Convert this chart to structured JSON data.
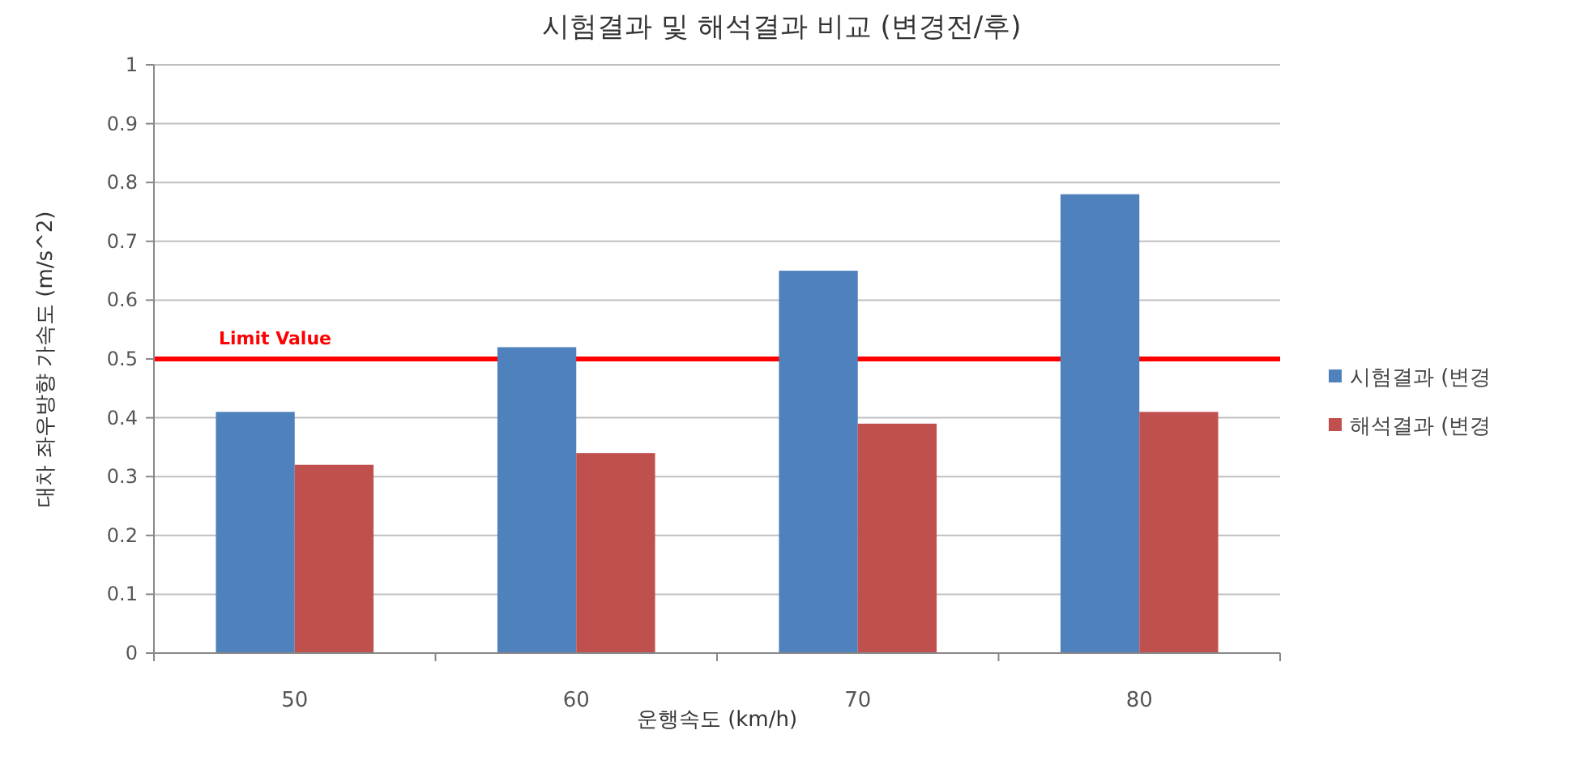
{
  "chart_data": {
    "type": "bar",
    "title": "시험결과 및 해석결과 비교 (변경전/후)",
    "xlabel": "운행속도 (km/h)",
    "ylabel": "대차 좌우방향 가속도 (m/s^2)",
    "categories": [
      "50",
      "60",
      "70",
      "80"
    ],
    "series": [
      {
        "name": "시험결과 (변경",
        "color": "#4f81bd",
        "values": [
          0.41,
          0.52,
          0.65,
          0.78
        ]
      },
      {
        "name": "해석결과 (변경",
        "color": "#c0504d",
        "values": [
          0.32,
          0.34,
          0.39,
          0.41
        ]
      }
    ],
    "ylim": [
      0,
      1
    ],
    "yticks": [
      0,
      0.1,
      0.2,
      0.3,
      0.4,
      0.5,
      0.6,
      0.7,
      0.8,
      0.9,
      1
    ],
    "grid": "y",
    "legend": "right",
    "ref_lines": [
      {
        "axis": "y",
        "value": 0.5,
        "label": "Limit Value",
        "color": "#ff0000"
      }
    ]
  }
}
